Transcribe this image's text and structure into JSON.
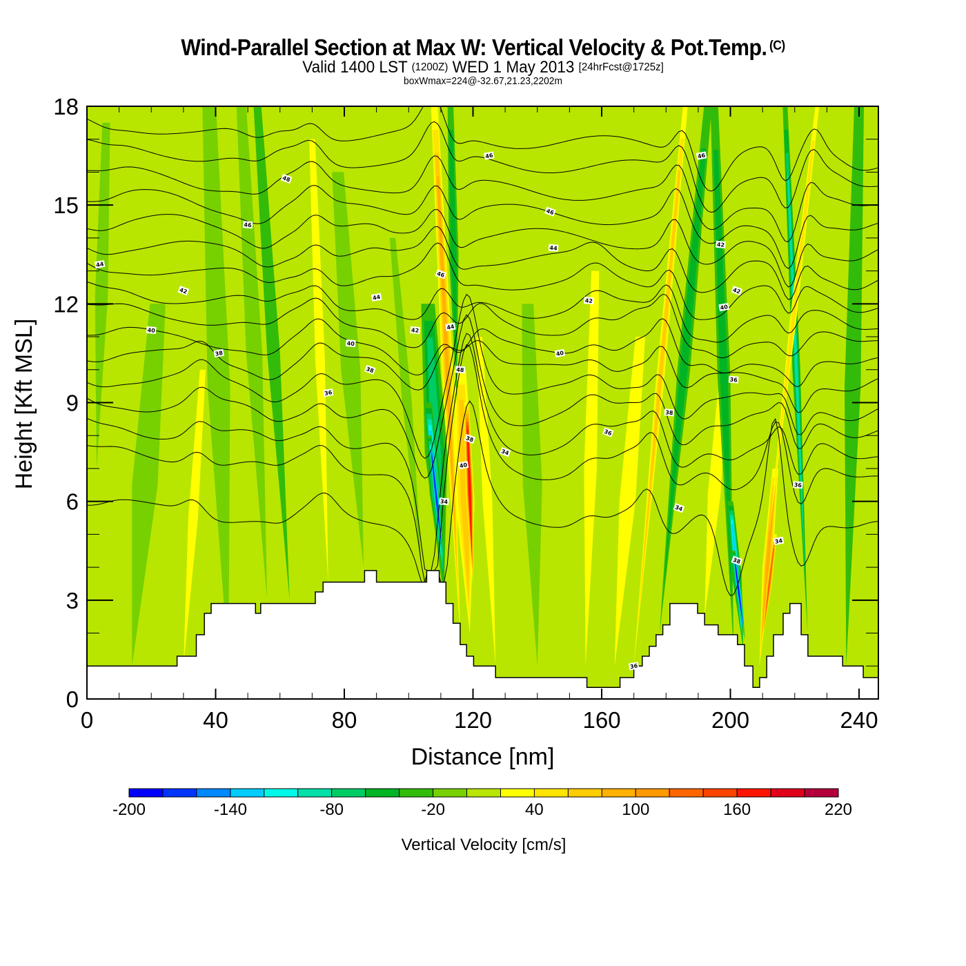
{
  "header": {
    "title": "Wind-Parallel Section at Max W: Vertical Velocity & Pot.Temp.",
    "copyright": "(C)",
    "valid_prefix": "Valid 1400 LST",
    "valid_utc": "(1200Z)",
    "valid_date": "WED 1 May 2013",
    "forecast": "[24hrFcst@1725z]",
    "subtitle": "boxWmax=224@-32.67,21.23,2202m"
  },
  "chart_data": {
    "type": "heatmap",
    "title": "Wind-Parallel Section at Max W: Vertical Velocity & Pot.Temp.",
    "xlabel": "Distance [nm]",
    "ylabel": "Height [Kft MSL]",
    "xlim": [
      0,
      246
    ],
    "ylim": [
      0,
      18
    ],
    "xticks": [
      0,
      40,
      80,
      120,
      160,
      200,
      240
    ],
    "xtick_labels": [
      "0",
      "40",
      "80",
      "120",
      "160",
      "200",
      "240"
    ],
    "x_minor_step": 10,
    "yticks": [
      0,
      3,
      6,
      9,
      12,
      15,
      18
    ],
    "ytick_labels": [
      "0",
      "3",
      "6",
      "9",
      "12",
      "15",
      "18"
    ],
    "y_minor_step": 1,
    "background_value": 10,
    "colorbar": {
      "label": "Vertical Velocity [cm/s]",
      "levels": [
        -200,
        -180,
        -160,
        -140,
        -120,
        -100,
        -80,
        -60,
        -40,
        -20,
        0,
        20,
        40,
        60,
        80,
        100,
        120,
        140,
        160,
        180,
        200,
        220
      ],
      "tick_labels": [
        "-200",
        "-140",
        "-80",
        "-20",
        "40",
        "100",
        "160",
        "220"
      ],
      "tick_values": [
        -200,
        -140,
        -80,
        -20,
        40,
        100,
        160,
        220
      ],
      "colors": [
        "#0000ff",
        "#0035ff",
        "#0088ff",
        "#00ccff",
        "#00f8e8",
        "#00e0a8",
        "#00cc66",
        "#00b424",
        "#33bb0a",
        "#77d000",
        "#b8e600",
        "#ffff00",
        "#ffe400",
        "#ffcc00",
        "#ffb000",
        "#ff9900",
        "#ff6600",
        "#ff4400",
        "#ff1500",
        "#e0001a",
        "#b4003a"
      ],
      "placement": "bottom"
    },
    "vertical_velocity_features": [
      {
        "x0": 3,
        "x1": 6,
        "ybot": 7,
        "ytop": 17.5,
        "w": 4,
        "value": -10
      },
      {
        "x0": 14,
        "x1": 22,
        "ybot": 1,
        "ytop": 12,
        "w": 8,
        "value": -10
      },
      {
        "x0": 30,
        "x1": 36,
        "ybot": 1,
        "ytop": 10,
        "w": 3,
        "value": 30
      },
      {
        "x0": 44,
        "x1": 38,
        "ybot": 1,
        "ytop": 18,
        "w": 7,
        "value": -10
      },
      {
        "x0": 56,
        "x1": 48,
        "ybot": 3,
        "ytop": 18,
        "w": 5,
        "value": -10
      },
      {
        "x0": 63,
        "x1": 53,
        "ybot": 3,
        "ytop": 18,
        "w": 4,
        "value": -25
      },
      {
        "x0": 75,
        "x1": 70,
        "ybot": 3.5,
        "ytop": 17,
        "w": 3,
        "value": 30
      },
      {
        "x0": 86,
        "x1": 78,
        "ybot": 4,
        "ytop": 16,
        "w": 6,
        "value": -10
      },
      {
        "x0": 104,
        "x1": 95,
        "ybot": 4,
        "ytop": 14,
        "w": 3,
        "value": -10
      },
      {
        "x0": 111,
        "x1": 106,
        "ybot": 3,
        "ytop": 12,
        "w": 7,
        "value": -60
      },
      {
        "x0": 111,
        "x1": 106,
        "ybot": 3.5,
        "ytop": 9,
        "w": 4,
        "value": -120
      },
      {
        "x0": 111,
        "x1": 106.5,
        "ybot": 4,
        "ytop": 8,
        "w": 2,
        "value": -170
      },
      {
        "x0": 116,
        "x1": 108,
        "ybot": 2,
        "ytop": 18,
        "w": 3.5,
        "value": 80
      },
      {
        "x0": 119,
        "x1": 116,
        "ybot": 2,
        "ytop": 10,
        "w": 6,
        "value": 60
      },
      {
        "x0": 120,
        "x1": 118,
        "ybot": 3.5,
        "ytop": 9,
        "w": 2.5,
        "value": 170
      },
      {
        "x0": 115,
        "x1": 113,
        "ybot": 9,
        "ytop": 18,
        "w": 3,
        "value": -40
      },
      {
        "x0": 127,
        "x1": 122,
        "ybot": 1,
        "ytop": 11,
        "w": 3,
        "value": 30
      },
      {
        "x0": 140,
        "x1": 137,
        "ybot": 1,
        "ytop": 12,
        "w": 6,
        "value": -10
      },
      {
        "x0": 155,
        "x1": 158,
        "ybot": 1,
        "ytop": 13,
        "w": 4,
        "value": 30
      },
      {
        "x0": 164,
        "x1": 172,
        "ybot": 1,
        "ytop": 11,
        "w": 5,
        "value": 30
      },
      {
        "x0": 170,
        "x1": 186,
        "ybot": 1,
        "ytop": 18,
        "w": 2.5,
        "value": 60
      },
      {
        "x0": 178,
        "x1": 193,
        "ybot": 2,
        "ytop": 18,
        "w": 4,
        "value": -40
      },
      {
        "x0": 192,
        "x1": 198,
        "ybot": 2.5,
        "ytop": 10,
        "w": 4,
        "value": 30
      },
      {
        "x0": 201,
        "x1": 195,
        "ybot": 1.5,
        "ytop": 18,
        "w": 4,
        "value": -40
      },
      {
        "x0": 204,
        "x1": 200,
        "ybot": 1.5,
        "ytop": 6,
        "w": 3,
        "value": -120
      },
      {
        "x0": 204.5,
        "x1": 201,
        "ybot": 1.8,
        "ytop": 4.5,
        "w": 1.8,
        "value": -180
      },
      {
        "x0": 209,
        "x1": 214,
        "ybot": 1,
        "ytop": 7,
        "w": 3,
        "value": 80
      },
      {
        "x0": 210,
        "x1": 214,
        "ybot": 1.8,
        "ytop": 5,
        "w": 1.5,
        "value": 130
      },
      {
        "x0": 224,
        "x1": 217,
        "ybot": 2,
        "ytop": 18,
        "w": 2.5,
        "value": -80
      },
      {
        "x0": 212,
        "x1": 227,
        "ybot": 5,
        "ytop": 18,
        "w": 2,
        "value": 40
      },
      {
        "x0": 236,
        "x1": 240,
        "ybot": 1,
        "ytop": 18,
        "w": 5,
        "value": -20
      }
    ],
    "terrain_kft": {
      "x": [
        0,
        28,
        28,
        34,
        34,
        36.5,
        36.5,
        38.6,
        38.6,
        52.4,
        52.4,
        54,
        54,
        71,
        71,
        73.4,
        73.4,
        86.3,
        86.3,
        90,
        90,
        105.6,
        105.6,
        109.5,
        109.5,
        111.6,
        111.6,
        113.8,
        113.8,
        116,
        116,
        118,
        118,
        120.2,
        120.2,
        127,
        127,
        155.4,
        155.4,
        165.7,
        165.7,
        170,
        170,
        172.6,
        172.6,
        174.8,
        174.8,
        176.9,
        176.9,
        179,
        179,
        181.2,
        181.2,
        189.8,
        189.8,
        192,
        192,
        196.2,
        196.2,
        202.2,
        202.2,
        204.4,
        204.4,
        207,
        207,
        209.1,
        209.1,
        211.3,
        211.3,
        213.4,
        213.4,
        216.4,
        216.4,
        218.5,
        218.5,
        222,
        222,
        224.1,
        224.1,
        234.9,
        234.9,
        241.3,
        241.3,
        246
      ],
      "y": [
        1.0,
        1.0,
        1.3,
        1.3,
        1.95,
        1.95,
        2.6,
        2.6,
        2.9,
        2.9,
        2.6,
        2.6,
        2.9,
        2.9,
        3.25,
        3.25,
        3.55,
        3.55,
        3.9,
        3.9,
        3.55,
        3.55,
        3.9,
        3.9,
        3.55,
        3.55,
        2.9,
        2.9,
        2.3,
        2.3,
        1.65,
        1.65,
        1.3,
        1.3,
        1.0,
        1.0,
        0.65,
        0.65,
        0.35,
        0.35,
        0.65,
        0.65,
        1.0,
        1.0,
        1.3,
        1.3,
        1.6,
        1.6,
        1.95,
        1.95,
        2.25,
        2.25,
        2.9,
        2.9,
        2.6,
        2.6,
        2.25,
        2.25,
        1.95,
        1.95,
        1.65,
        1.65,
        1.0,
        1.0,
        0.35,
        0.35,
        0.65,
        0.65,
        1.3,
        1.3,
        1.95,
        1.95,
        2.6,
        2.6,
        2.9,
        2.9,
        1.95,
        1.95,
        1.3,
        1.3,
        1.0,
        1.0,
        0.65,
        0.65
      ]
    },
    "theta_contours": {
      "interval": 1,
      "levels_range": [
        32,
        48
      ],
      "base_heights_kft_at_x0": [
        6.0,
        7.6,
        8.4,
        9.2,
        9.9,
        10.6,
        11.2,
        11.9,
        12.5,
        13.2,
        13.9,
        14.6,
        15.3,
        16.0,
        16.8,
        17.5
      ],
      "labels": [
        {
          "x": 4,
          "y": 13.2,
          "text": "44"
        },
        {
          "x": 20,
          "y": 11.2,
          "text": "40"
        },
        {
          "x": 30,
          "y": 12.4,
          "text": "42"
        },
        {
          "x": 41,
          "y": 10.5,
          "text": "38"
        },
        {
          "x": 50,
          "y": 14.4,
          "text": "46"
        },
        {
          "x": 62,
          "y": 15.8,
          "text": "48"
        },
        {
          "x": 75,
          "y": 9.3,
          "text": "36"
        },
        {
          "x": 82,
          "y": 10.8,
          "text": "40"
        },
        {
          "x": 88,
          "y": 10.0,
          "text": "38"
        },
        {
          "x": 90,
          "y": 12.2,
          "text": "44"
        },
        {
          "x": 102,
          "y": 11.2,
          "text": "42"
        },
        {
          "x": 110,
          "y": 12.9,
          "text": "46"
        },
        {
          "x": 113,
          "y": 11.3,
          "text": "44"
        },
        {
          "x": 116,
          "y": 10.0,
          "text": "48"
        },
        {
          "x": 119,
          "y": 7.9,
          "text": "38"
        },
        {
          "x": 117,
          "y": 7.1,
          "text": "40"
        },
        {
          "x": 111,
          "y": 6.0,
          "text": "34"
        },
        {
          "x": 130,
          "y": 7.5,
          "text": "34"
        },
        {
          "x": 125,
          "y": 16.5,
          "text": "46"
        },
        {
          "x": 145,
          "y": 13.7,
          "text": "44"
        },
        {
          "x": 144,
          "y": 14.8,
          "text": "46"
        },
        {
          "x": 147,
          "y": 10.5,
          "text": "40"
        },
        {
          "x": 156,
          "y": 12.1,
          "text": "42"
        },
        {
          "x": 162,
          "y": 8.1,
          "text": "36"
        },
        {
          "x": 170,
          "y": 1.0,
          "text": "36"
        },
        {
          "x": 181,
          "y": 8.7,
          "text": "38"
        },
        {
          "x": 184,
          "y": 5.8,
          "text": "34"
        },
        {
          "x": 191,
          "y": 16.5,
          "text": "46"
        },
        {
          "x": 197,
          "y": 13.8,
          "text": "42"
        },
        {
          "x": 202,
          "y": 12.4,
          "text": "42"
        },
        {
          "x": 198,
          "y": 11.9,
          "text": "40"
        },
        {
          "x": 201,
          "y": 9.7,
          "text": "36"
        },
        {
          "x": 202,
          "y": 4.2,
          "text": "38"
        },
        {
          "x": 215,
          "y": 4.8,
          "text": "34"
        },
        {
          "x": 221,
          "y": 6.5,
          "text": "36"
        }
      ]
    }
  }
}
